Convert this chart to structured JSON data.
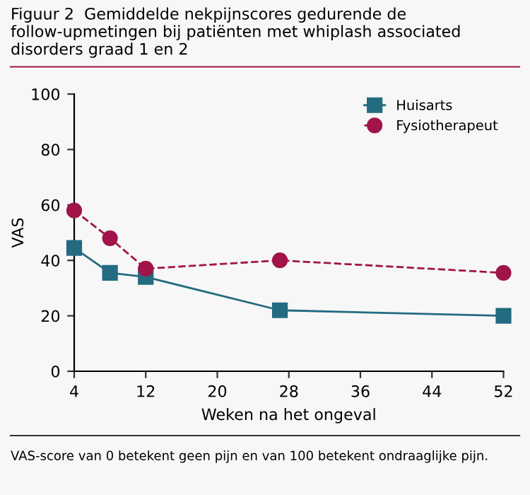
{
  "chart_data": {
    "type": "line",
    "title": "Figuur 2  Gemiddelde nekpijnscores gedurende de follow-upmetingen bij patiënten met whiplash associated disorders graad 1 en 2",
    "xlabel": "Weken na het ongeval",
    "ylabel": "VAS",
    "x": [
      4,
      8,
      12,
      27,
      52
    ],
    "series": [
      {
        "name": "Huisarts",
        "color": "#236b80",
        "values": [
          44.5,
          35.5,
          34,
          22,
          20
        ],
        "marker": "square",
        "line_style": "solid"
      },
      {
        "name": "Fysiotherapeut",
        "color": "#a0144a",
        "values": [
          58,
          48,
          37,
          40,
          35.5
        ],
        "marker": "circle",
        "line_style": "dashed"
      }
    ],
    "xlim": [
      4,
      52
    ],
    "xticks": [
      4,
      12,
      20,
      28,
      36,
      44,
      52
    ],
    "ylim": [
      0,
      100
    ],
    "yticks": [
      0,
      20,
      40,
      60,
      80,
      100
    ],
    "grid": false,
    "legend": "top right",
    "annotations": [
      "VAS-score van 0 betekent geen pijn en van 100 betekent ondraaglijke pijn."
    ]
  }
}
